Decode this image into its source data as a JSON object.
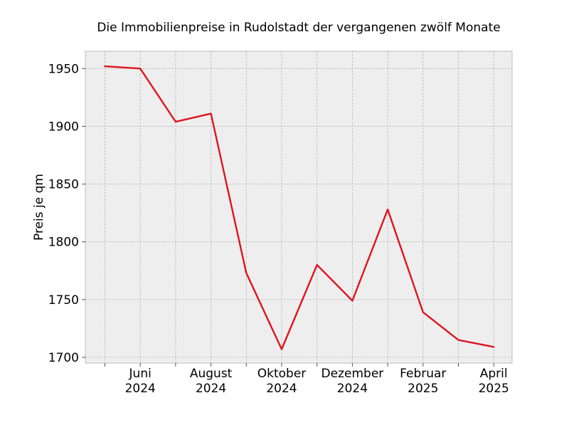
{
  "chart_data": {
    "type": "line",
    "title": "Die Immobilienpreise in Rudolstadt der vergangenen zwölf Monate",
    "xlabel": "",
    "ylabel": "Preis je qm",
    "x": [
      "2024-05",
      "2024-06",
      "2024-07",
      "2024-08",
      "2024-09",
      "2024-10",
      "2024-11",
      "2024-12",
      "2025-01",
      "2025-02",
      "2025-03",
      "2025-04"
    ],
    "series": [
      {
        "values": [
          1952,
          1950,
          1904,
          1911,
          1773,
          1707,
          1780,
          1749,
          1828,
          1739,
          1715,
          1709
        ]
      }
    ],
    "ylim": [
      1695,
      1965
    ],
    "yticks": [
      1700,
      1750,
      1800,
      1850,
      1900,
      1950
    ],
    "ytick_labels": [
      "1700",
      "1750",
      "1800",
      "1850",
      "1900",
      "1950"
    ],
    "xtick_labels": [
      {
        "x": "2024-06",
        "month": "Juni",
        "year": "2024"
      },
      {
        "x": "2024-08",
        "month": "August",
        "year": "2024"
      },
      {
        "x": "2024-10",
        "month": "Oktober",
        "year": "2024"
      },
      {
        "x": "2024-12",
        "month": "Dezember",
        "year": "2024"
      },
      {
        "x": "2025-02",
        "month": "Februar",
        "year": "2025"
      },
      {
        "x": "2025-04",
        "month": "April",
        "year": "2025"
      }
    ],
    "grid": true,
    "colors": {
      "line": "#e0141e",
      "plot_background": "#eeeeee",
      "grid": "#b0b0b0",
      "frame": "#bcbcbc"
    }
  }
}
